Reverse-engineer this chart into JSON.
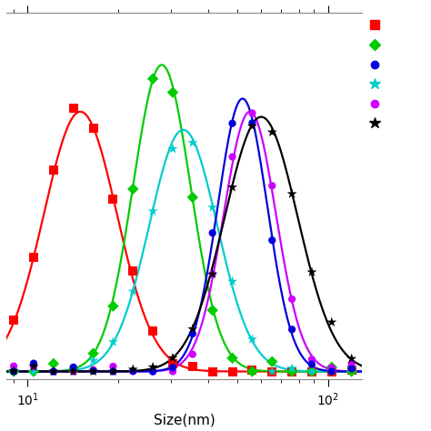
{
  "xlabel": "Size(nm)",
  "xlim": [
    8.5,
    130
  ],
  "ylim": [
    -0.03,
    1.38
  ],
  "series": [
    {
      "color": "#ff0000",
      "marker": "s",
      "mu_nm": 15.0,
      "sigma": 0.28,
      "amp": 1.0
    },
    {
      "color": "#00cc00",
      "marker": "D",
      "mu_nm": 28.0,
      "sigma": 0.22,
      "amp": 1.18
    },
    {
      "color": "#00cccc",
      "marker": "*",
      "mu_nm": 33.0,
      "sigma": 0.26,
      "amp": 0.93
    },
    {
      "color": "#cc00ff",
      "marker": "o",
      "mu_nm": 55.0,
      "sigma": 0.2,
      "amp": 1.0
    },
    {
      "color": "#0000dd",
      "marker": "o",
      "mu_nm": 52.0,
      "sigma": 0.19,
      "amp": 1.05
    },
    {
      "color": "#000000",
      "marker": "*",
      "mu_nm": 60.0,
      "sigma": 0.28,
      "amp": 0.98
    }
  ],
  "legend_colors": [
    "#ff0000",
    "#00cc00",
    "#0000dd",
    "#00cccc",
    "#cc00ff",
    "#000000"
  ],
  "legend_markers": [
    "s",
    "D",
    "o",
    "*",
    "o",
    "*"
  ],
  "figsize": [
    4.74,
    4.74
  ],
  "dpi": 100
}
